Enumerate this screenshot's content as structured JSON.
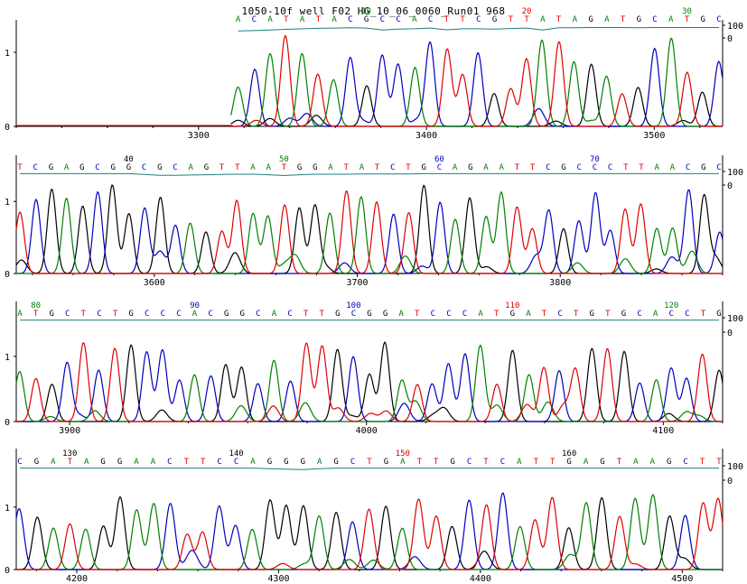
{
  "title": "1050-10f well F02 HG_10_06_0060_Run01  968",
  "colors": {
    "A": "#008000",
    "C": "#0000c0",
    "G": "#000000",
    "T": "#e00000",
    "quality": "#1f7f7f",
    "axis": "#000000"
  },
  "chart_data": {
    "type": "line",
    "title": "1050-10f well F02 HG_10_06_0060_Run01  968",
    "series_bases": [
      "A",
      "C",
      "G",
      "T"
    ],
    "panels": [
      {
        "xlim": [
          3220,
          3530
        ],
        "y_left_ticks": [
          "1",
          "0"
        ],
        "y_right_ticks": [
          "100",
          "0"
        ],
        "x_ticks": [
          3300,
          3400,
          3500
        ],
        "data_start": 3315,
        "sequence": "ACATATACGCCACTTCGTTATAGATGCATGC",
        "seq_start_index": 2,
        "base_number_labels": [
          {
            "n": 10,
            "base": "A"
          },
          {
            "n": 20,
            "base": "T"
          },
          {
            "n": 30,
            "base": "A"
          }
        ],
        "quality": [
          55,
          58,
          62,
          68,
          72,
          76,
          78,
          80,
          78,
          62,
          70,
          72,
          78,
          64,
          72,
          72,
          70,
          74,
          78,
          62,
          80,
          80,
          82,
          82,
          82,
          80,
          82,
          82,
          82,
          82,
          82
        ]
      },
      {
        "xlim": [
          3532,
          3880
        ],
        "y_left_ticks": [
          "1",
          "0"
        ],
        "y_right_ticks": [
          "100",
          "0"
        ],
        "x_ticks": [
          3600,
          3700,
          3800
        ],
        "data_start": 3532,
        "sequence": "TCGAGCGGCGCAGTTAATGGATATCTGCAGAATTCGCCCTTAACGC",
        "seq_start_index": 33,
        "base_number_labels": [
          {
            "n": 40,
            "base": "G"
          },
          {
            "n": 50,
            "base": "A"
          },
          {
            "n": 60,
            "base": "C"
          },
          {
            "n": 70,
            "base": "C"
          }
        ],
        "quality": [
          84,
          84,
          84,
          84,
          84,
          84,
          84,
          84,
          78,
          72,
          72,
          74,
          76,
          78,
          80,
          80,
          76,
          70,
          76,
          80,
          80,
          80,
          82,
          82,
          82,
          82,
          84,
          84,
          84,
          84,
          84,
          84,
          84,
          84,
          84,
          84,
          84,
          84,
          84,
          84,
          84,
          84,
          84,
          84,
          84,
          84
        ]
      },
      {
        "xlim": [
          3882,
          4120
        ],
        "y_left_ticks": [
          "1",
          "0"
        ],
        "y_right_ticks": [
          "100",
          "0"
        ],
        "x_ticks": [
          3900,
          4000,
          4100
        ],
        "data_start": 3882,
        "sequence": "ATGCTCTGCCCACGGCACTTGCGGATCCCATGATCTGTGCACCTG",
        "seq_start_index": 79,
        "base_number_labels": [
          {
            "n": 80,
            "base": "A"
          },
          {
            "n": 90,
            "base": "C"
          },
          {
            "n": 100,
            "base": "C"
          },
          {
            "n": 110,
            "base": "T"
          },
          {
            "n": 120,
            "base": "A"
          }
        ],
        "quality": [
          84,
          84,
          84,
          84,
          84,
          84,
          84,
          84,
          84,
          84,
          84,
          84,
          84,
          84,
          84,
          84,
          84,
          84,
          84,
          84,
          84,
          84,
          84,
          84,
          84,
          84,
          84,
          84,
          84,
          84,
          84,
          84,
          84,
          84,
          84,
          84,
          84,
          84,
          84,
          84,
          84,
          84,
          84,
          84,
          84
        ]
      },
      {
        "xlim": [
          4170,
          4520
        ],
        "y_left_ticks": [
          "1",
          "0"
        ],
        "y_right_ticks": [
          "100",
          "0"
        ],
        "x_ticks": [
          4200,
          4300,
          4400,
          4500
        ],
        "data_start": 4170,
        "sequence": "CGATAGGAACTTCCAGGGAGCTGATTGCTCATTGAGTAAGCTT",
        "seq_start_index": 127,
        "base_number_labels": [
          {
            "n": 130,
            "base": "G"
          },
          {
            "n": 140,
            "base": "G"
          },
          {
            "n": 150,
            "base": "T"
          },
          {
            "n": 160,
            "base": "G"
          }
        ],
        "quality": [
          84,
          84,
          84,
          84,
          84,
          84,
          84,
          84,
          84,
          84,
          84,
          84,
          84,
          84,
          84,
          80,
          76,
          74,
          80,
          84,
          84,
          84,
          84,
          84,
          84,
          84,
          84,
          84,
          84,
          84,
          84,
          84,
          84,
          84,
          84,
          84,
          84,
          84,
          84,
          84,
          84,
          84,
          84
        ]
      }
    ]
  }
}
